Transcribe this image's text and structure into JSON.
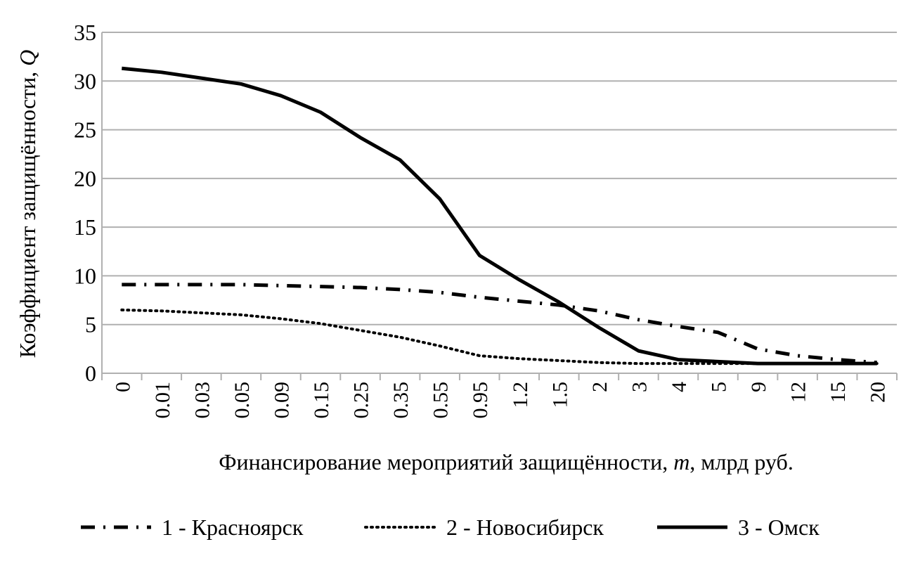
{
  "chart_data": {
    "type": "line",
    "title": "",
    "xlabel_parts": [
      "Финансирование мероприятий защищённости, ",
      "m",
      ", млрд руб."
    ],
    "ylabel_parts": [
      "Коэффициент защищённости, ",
      "Q"
    ],
    "categories": [
      "0",
      "0.01",
      "0.03",
      "0.05",
      "0.09",
      "0.15",
      "0.25",
      "0.35",
      "0.55",
      "0.95",
      "1.2",
      "1.5",
      "2",
      "3",
      "4",
      "5",
      "9",
      "12",
      "15",
      "20"
    ],
    "ylim": [
      0,
      35
    ],
    "yticks": [
      0,
      5,
      10,
      15,
      20,
      25,
      30,
      35
    ],
    "grid": true,
    "legend_position": "bottom",
    "series": [
      {
        "name": "1 - Красноярск",
        "style": "dash-dot",
        "color": "#000000",
        "values": [
          9.1,
          9.1,
          9.1,
          9.1,
          9.0,
          8.9,
          8.8,
          8.6,
          8.3,
          7.8,
          7.4,
          7.0,
          6.4,
          5.5,
          4.8,
          4.2,
          2.5,
          1.8,
          1.4,
          1.1
        ]
      },
      {
        "name": "2 - Новосибирск",
        "style": "dotted",
        "color": "#000000",
        "values": [
          6.5,
          6.4,
          6.2,
          6.0,
          5.6,
          5.1,
          4.4,
          3.7,
          2.8,
          1.8,
          1.5,
          1.3,
          1.1,
          1.0,
          1.0,
          1.0,
          1.0,
          1.0,
          1.0,
          1.0
        ]
      },
      {
        "name": "3 - Омск",
        "style": "solid",
        "color": "#000000",
        "values": [
          31.3,
          30.9,
          30.3,
          29.7,
          28.5,
          26.8,
          24.2,
          21.9,
          17.9,
          12.1,
          9.6,
          7.3,
          4.7,
          2.3,
          1.4,
          1.2,
          1.0,
          1.0,
          1.0,
          1.0
        ]
      }
    ]
  }
}
